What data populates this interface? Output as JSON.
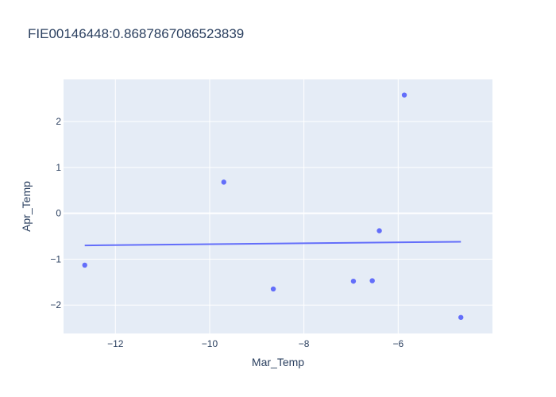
{
  "chart_data": {
    "type": "scatter",
    "title": "FIE00146448:0.8687867086523839",
    "xlabel": "Mar_Temp",
    "ylabel": "Apr_Temp",
    "xlim": [
      -13.1,
      -4.0
    ],
    "ylim": [
      -2.62,
      2.92
    ],
    "xticks": [
      -12,
      -10,
      -8,
      -6
    ],
    "xtick_labels": [
      "−12",
      "−10",
      "−8",
      "−6"
    ],
    "yticks": [
      -2,
      -1,
      0,
      1,
      2
    ],
    "ytick_labels": [
      "−2",
      "−1",
      "0",
      "1",
      "2"
    ],
    "grid": true,
    "colors": {
      "plot_bg": "#e5ecf6",
      "marker": "#636efa",
      "line": "#636efa",
      "grid": "#ffffff",
      "text": "#2a3f5f"
    },
    "points": [
      {
        "x": -12.65,
        "y": -1.13
      },
      {
        "x": -9.7,
        "y": 0.68
      },
      {
        "x": -8.65,
        "y": -1.65
      },
      {
        "x": -6.95,
        "y": -1.48
      },
      {
        "x": -6.55,
        "y": -1.47
      },
      {
        "x": -6.4,
        "y": -0.38
      },
      {
        "x": -5.87,
        "y": 2.58
      },
      {
        "x": -4.67,
        "y": -2.27
      }
    ],
    "trendline": [
      {
        "x": -12.65,
        "y": -0.7
      },
      {
        "x": -4.67,
        "y": -0.62
      }
    ]
  }
}
